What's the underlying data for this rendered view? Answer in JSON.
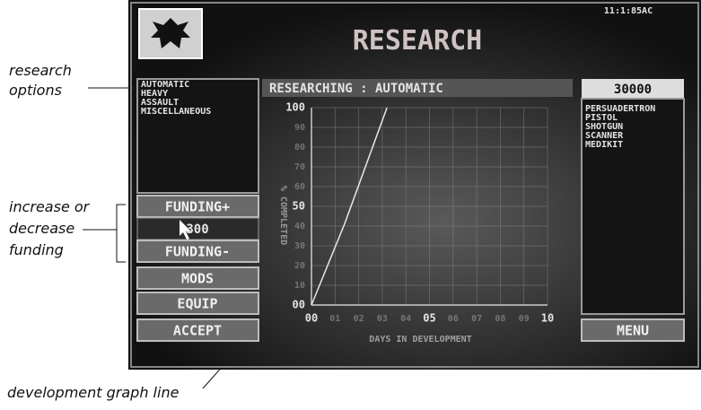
{
  "annotations": {
    "research_options": [
      "research",
      "options"
    ],
    "funding": [
      "increase or",
      "decrease",
      "funding"
    ],
    "graph_line": "development graph line"
  },
  "screen": {
    "time": "11:1:85AC",
    "title": "RESEARCH",
    "research_options": [
      "AUTOMATIC",
      "HEAVY",
      "ASSAULT",
      "MISCELLANEOUS"
    ],
    "status": "RESEARCHING : AUTOMATIC",
    "credits": 30000,
    "funding": 300,
    "buttons": {
      "funding_up": "FUNDING+",
      "funding_down": "FUNDING-",
      "mods": "MODS",
      "equip": "EQUIP",
      "accept": "ACCEPT",
      "menu": "MENU"
    },
    "items": [
      "PERSUADERTRON",
      "PISTOL",
      "SHOTGUN",
      "SCANNER",
      "MEDIKIT"
    ],
    "graph": {
      "type": "line",
      "ylabel": "% COMPLETED",
      "xlabel": "DAYS IN DEVELOPMENT",
      "x": [
        0,
        1.4,
        3.2
      ],
      "y": [
        0,
        41,
        100
      ],
      "xlim": [
        0,
        10
      ],
      "ylim": [
        0,
        100
      ],
      "xticks": [
        {
          "value": 0,
          "label": "00"
        },
        {
          "value": 1,
          "label": "01"
        },
        {
          "value": 2,
          "label": "02"
        },
        {
          "value": 3,
          "label": "03"
        },
        {
          "value": 4,
          "label": "04"
        },
        {
          "value": 5,
          "label": "05"
        },
        {
          "value": 6,
          "label": "06"
        },
        {
          "value": 7,
          "label": "07"
        },
        {
          "value": 8,
          "label": "08"
        },
        {
          "value": 9,
          "label": "09"
        },
        10
      ],
      "yticks": [
        {
          "value": 0,
          "label": "00"
        },
        10,
        20,
        30,
        40,
        50,
        60,
        70,
        80,
        90,
        100
      ],
      "grid": true,
      "color": "#e8e8e8"
    }
  }
}
